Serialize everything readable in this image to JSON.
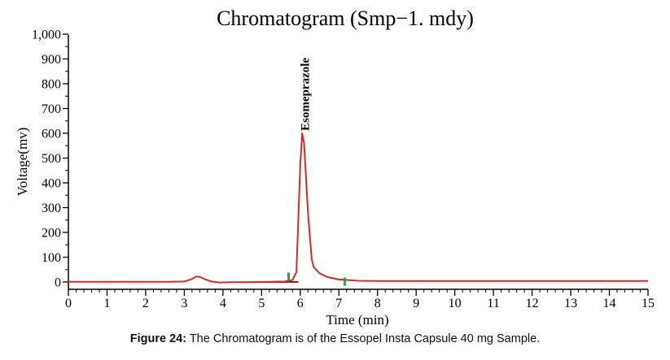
{
  "chart_data": {
    "type": "line",
    "title": "Chromatogram (Smp−1. mdy)",
    "xlabel": "Time (min)",
    "ylabel": "Voltage(mv)",
    "xlim": [
      0,
      15
    ],
    "ylim": [
      -20,
      1000
    ],
    "xticks": [
      "0",
      "1",
      "2",
      "3",
      "4",
      "5",
      "6",
      "7",
      "8",
      "9",
      "10",
      "11",
      "12",
      "13",
      "14",
      "15"
    ],
    "yticks": [
      "0",
      "100",
      "200",
      "300",
      "400",
      "500",
      "600",
      "700",
      "800",
      "900",
      "1,000"
    ],
    "series": [
      {
        "color": "#d42a2a",
        "x": [
          0,
          1,
          2,
          2.6,
          3.0,
          3.2,
          3.3,
          3.4,
          3.55,
          3.7,
          3.9,
          4.2,
          5.0,
          5.6,
          5.8,
          5.9,
          5.95,
          6.0,
          6.05,
          6.1,
          6.15,
          6.2,
          6.25,
          6.3,
          6.35,
          6.5,
          6.7,
          7.0,
          7.5,
          8,
          10,
          12,
          15
        ],
        "y": [
          1,
          1,
          1,
          1,
          2,
          12,
          22,
          21,
          10,
          2,
          -2,
          -1,
          0,
          2,
          8,
          40,
          250,
          470,
          600,
          560,
          420,
          280,
          180,
          90,
          60,
          35,
          20,
          10,
          5,
          4,
          4,
          4,
          4
        ]
      }
    ],
    "annotations": [
      {
        "text": "Esomeprazole",
        "x": 6.1,
        "y": 610
      }
    ],
    "markers": [
      {
        "x": 5.7,
        "y": 15,
        "color": "#2e9e4a"
      },
      {
        "x": 7.15,
        "y": -5,
        "color": "#2e9e4a"
      }
    ],
    "grid": false,
    "legend": "none"
  },
  "caption": {
    "label": "Figure 24:",
    "text": " The Chromatogram is of the Essopel Insta Capsule 40 mg Sample."
  }
}
